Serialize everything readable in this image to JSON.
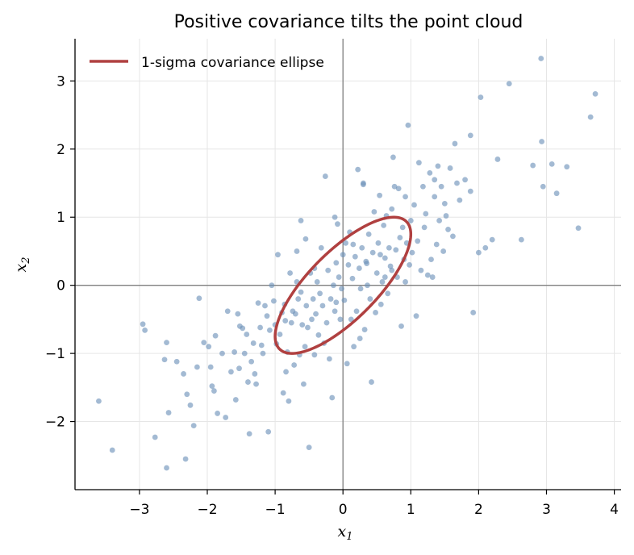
{
  "chart_data": {
    "type": "scatter",
    "title": "Positive covariance tilts the point cloud",
    "xlabel": "x",
    "xlabel_sub": "1",
    "ylabel": "x",
    "ylabel_sub": "2",
    "xlim": [
      -3.95,
      4.1
    ],
    "ylim": [
      -3.0,
      3.62
    ],
    "xticks": [
      -3,
      -2,
      -1,
      0,
      1,
      2,
      3,
      4
    ],
    "yticks": [
      -2,
      -1,
      0,
      1,
      2,
      3
    ],
    "xtick_labels": [
      "−3",
      "−2",
      "−1",
      "0",
      "1",
      "2",
      "3",
      "4"
    ],
    "ytick_labels": [
      "−2",
      "−1",
      "0",
      "1",
      "2",
      "3"
    ],
    "grid": true,
    "legend_position": "top-left",
    "colors": {
      "points": "#6b8fb8",
      "ellipse": "#b04040",
      "zero_lines": "#808080"
    },
    "ellipse": {
      "name": "1-sigma covariance ellipse",
      "center": [
        0,
        0
      ],
      "cov": [
        [
          1.0,
          0.75
        ],
        [
          0.75,
          1.0
        ]
      ]
    },
    "points": [
      [
        -3.6,
        -1.7
      ],
      [
        -3.4,
        -2.42
      ],
      [
        -2.95,
        -0.57
      ],
      [
        -2.92,
        -0.66
      ],
      [
        -2.77,
        -2.23
      ],
      [
        -2.63,
        -1.09
      ],
      [
        -2.6,
        -0.84
      ],
      [
        -2.6,
        -2.68
      ],
      [
        -2.57,
        -1.87
      ],
      [
        -2.45,
        -1.12
      ],
      [
        -2.35,
        -1.3
      ],
      [
        -2.32,
        -2.55
      ],
      [
        -2.3,
        -1.6
      ],
      [
        -2.25,
        -1.76
      ],
      [
        -2.2,
        -2.06
      ],
      [
        -2.15,
        -1.2
      ],
      [
        -2.12,
        -0.19
      ],
      [
        -2.05,
        -0.84
      ],
      [
        -1.95,
        -1.2
      ],
      [
        -1.98,
        -0.9
      ],
      [
        -1.93,
        -1.48
      ],
      [
        -1.9,
        -1.55
      ],
      [
        -1.88,
        -0.74
      ],
      [
        -1.85,
        -1.88
      ],
      [
        -1.78,
        -1.0
      ],
      [
        -1.7,
        -0.38
      ],
      [
        -1.73,
        -1.94
      ],
      [
        -1.65,
        -1.27
      ],
      [
        -1.6,
        -0.98
      ],
      [
        -1.55,
        -0.42
      ],
      [
        -1.58,
        -1.68
      ],
      [
        -1.53,
        -1.22
      ],
      [
        -1.52,
        -0.6
      ],
      [
        -1.48,
        -0.63
      ],
      [
        -1.45,
        -1.0
      ],
      [
        -1.42,
        -0.72
      ],
      [
        -1.4,
        -1.42
      ],
      [
        -1.38,
        -2.18
      ],
      [
        -1.35,
        -1.12
      ],
      [
        -1.3,
        -1.3
      ],
      [
        -1.28,
        -1.45
      ],
      [
        -1.25,
        -0.26
      ],
      [
        -1.22,
        -0.62
      ],
      [
        -1.2,
        -0.88
      ],
      [
        -1.18,
        -1.0
      ],
      [
        -1.15,
        -0.3
      ],
      [
        -1.12,
        -0.45
      ],
      [
        -1.1,
        -2.15
      ],
      [
        -1.08,
        -0.66
      ],
      [
        -1.05,
        0.0
      ],
      [
        -1.02,
        -0.23
      ],
      [
        -1.0,
        -0.58
      ],
      [
        -0.98,
        -0.86
      ],
      [
        -0.96,
        0.45
      ],
      [
        -0.93,
        -0.72
      ],
      [
        -0.9,
        -0.4
      ],
      [
        -0.88,
        -1.58
      ],
      [
        -0.86,
        -0.28
      ],
      [
        -0.84,
        -1.27
      ],
      [
        -0.82,
        -0.98
      ],
      [
        -0.8,
        -1.7
      ],
      [
        -0.78,
        0.18
      ],
      [
        -0.76,
        -0.55
      ],
      [
        -0.74,
        -0.38
      ],
      [
        -0.72,
        -1.17
      ],
      [
        -0.7,
        -0.42
      ],
      [
        -0.68,
        0.05
      ],
      [
        -0.66,
        -0.2
      ],
      [
        -0.64,
        -1.02
      ],
      [
        -0.62,
        -0.1
      ],
      [
        -0.6,
        -0.58
      ],
      [
        -0.58,
        -1.45
      ],
      [
        -0.56,
        -0.9
      ],
      [
        -0.54,
        -0.3
      ],
      [
        -0.52,
        -0.62
      ],
      [
        -0.5,
        -2.38
      ],
      [
        -0.48,
        0.18
      ],
      [
        -0.46,
        -0.5
      ],
      [
        -0.44,
        -0.2
      ],
      [
        -0.42,
        -1.02
      ],
      [
        -0.4,
        -0.42
      ],
      [
        -0.38,
        0.05
      ],
      [
        -0.36,
        -0.73
      ],
      [
        -0.34,
        -0.12
      ],
      [
        -0.32,
        0.55
      ],
      [
        -0.3,
        -0.3
      ],
      [
        -0.28,
        -0.85
      ],
      [
        -0.26,
        1.6
      ],
      [
        -0.24,
        -0.55
      ],
      [
        -0.22,
        0.22
      ],
      [
        -0.2,
        -1.08
      ],
      [
        -0.18,
        -0.2
      ],
      [
        -0.16,
        -1.65
      ],
      [
        -0.14,
        0.0
      ],
      [
        -0.12,
        -0.38
      ],
      [
        -0.1,
        0.33
      ],
      [
        -0.08,
        0.9
      ],
      [
        -0.06,
        0.12
      ],
      [
        -0.04,
        -0.5
      ],
      [
        -0.02,
        -0.05
      ],
      [
        0.0,
        0.45
      ],
      [
        0.02,
        -0.22
      ],
      [
        0.04,
        0.62
      ],
      [
        0.06,
        -1.15
      ],
      [
        0.08,
        0.3
      ],
      [
        0.1,
        0.78
      ],
      [
        0.12,
        -0.5
      ],
      [
        0.14,
        0.1
      ],
      [
        0.16,
        -0.9
      ],
      [
        0.18,
        0.42
      ],
      [
        0.2,
        -0.38
      ],
      [
        0.22,
        1.7
      ],
      [
        0.24,
        0.25
      ],
      [
        0.26,
        -0.05
      ],
      [
        0.28,
        0.55
      ],
      [
        0.3,
        1.48
      ],
      [
        0.32,
        -0.65
      ],
      [
        0.34,
        0.35
      ],
      [
        0.36,
        0.0
      ],
      [
        0.38,
        0.75
      ],
      [
        0.4,
        -0.2
      ],
      [
        0.42,
        -1.42
      ],
      [
        0.44,
        0.48
      ],
      [
        0.46,
        1.08
      ],
      [
        0.48,
        -0.4
      ],
      [
        0.5,
        0.18
      ],
      [
        0.52,
        0.62
      ],
      [
        0.54,
        1.32
      ],
      [
        0.56,
        -0.28
      ],
      [
        0.58,
        0.05
      ],
      [
        0.6,
        0.88
      ],
      [
        0.62,
        0.4
      ],
      [
        0.64,
        1.02
      ],
      [
        0.66,
        -0.12
      ],
      [
        0.68,
        0.55
      ],
      [
        0.7,
        0.28
      ],
      [
        0.72,
        0.22
      ],
      [
        0.74,
        1.88
      ],
      [
        0.76,
        1.45
      ],
      [
        0.78,
        0.52
      ],
      [
        0.8,
        0.12
      ],
      [
        0.82,
        1.42
      ],
      [
        0.84,
        0.7
      ],
      [
        0.86,
        -0.6
      ],
      [
        0.88,
        0.85
      ],
      [
        0.9,
        0.38
      ],
      [
        0.92,
        1.3
      ],
      [
        0.94,
        0.62
      ],
      [
        0.96,
        2.35
      ],
      [
        0.98,
        0.3
      ],
      [
        1.0,
        0.95
      ],
      [
        1.02,
        0.48
      ],
      [
        1.05,
        1.18
      ],
      [
        1.08,
        -0.45
      ],
      [
        1.1,
        0.65
      ],
      [
        1.12,
        1.8
      ],
      [
        1.15,
        0.22
      ],
      [
        1.18,
        1.45
      ],
      [
        1.2,
        0.85
      ],
      [
        1.22,
        1.05
      ],
      [
        1.25,
        0.15
      ],
      [
        1.28,
        1.65
      ],
      [
        1.3,
        0.38
      ],
      [
        1.32,
        0.12
      ],
      [
        1.35,
        1.3
      ],
      [
        1.38,
        0.6
      ],
      [
        1.4,
        1.75
      ],
      [
        1.42,
        0.95
      ],
      [
        1.45,
        1.45
      ],
      [
        1.48,
        0.5
      ],
      [
        1.5,
        1.2
      ],
      [
        1.52,
        1.02
      ],
      [
        1.55,
        0.82
      ],
      [
        1.58,
        1.72
      ],
      [
        1.62,
        0.72
      ],
      [
        1.65,
        2.08
      ],
      [
        1.68,
        1.5
      ],
      [
        1.72,
        1.25
      ],
      [
        1.8,
        1.55
      ],
      [
        1.88,
        2.2
      ],
      [
        1.92,
        -0.4
      ],
      [
        2.0,
        0.48
      ],
      [
        2.03,
        2.76
      ],
      [
        2.1,
        0.55
      ],
      [
        2.2,
        0.67
      ],
      [
        2.28,
        1.85
      ],
      [
        2.45,
        2.96
      ],
      [
        2.63,
        0.67
      ],
      [
        2.8,
        1.76
      ],
      [
        2.92,
        3.33
      ],
      [
        2.93,
        2.11
      ],
      [
        2.95,
        1.45
      ],
      [
        3.08,
        1.78
      ],
      [
        3.15,
        1.35
      ],
      [
        3.3,
        1.74
      ],
      [
        3.47,
        0.84
      ],
      [
        3.65,
        2.47
      ],
      [
        3.72,
        2.81
      ],
      [
        -0.62,
        0.95
      ],
      [
        -0.55,
        0.68
      ],
      [
        -0.12,
        1.0
      ],
      [
        0.3,
        1.5
      ],
      [
        0.72,
        1.12
      ],
      [
        1.35,
        1.55
      ],
      [
        1.88,
        1.38
      ],
      [
        -0.1,
        -0.25
      ],
      [
        0.35,
        0.32
      ],
      [
        0.62,
        0.12
      ],
      [
        -0.42,
        0.25
      ],
      [
        0.15,
        0.6
      ],
      [
        0.92,
        0.05
      ],
      [
        -0.85,
        -0.52
      ],
      [
        -1.32,
        -0.85
      ],
      [
        0.55,
        0.45
      ],
      [
        0.25,
        -0.78
      ],
      [
        -0.68,
        0.5
      ]
    ]
  }
}
